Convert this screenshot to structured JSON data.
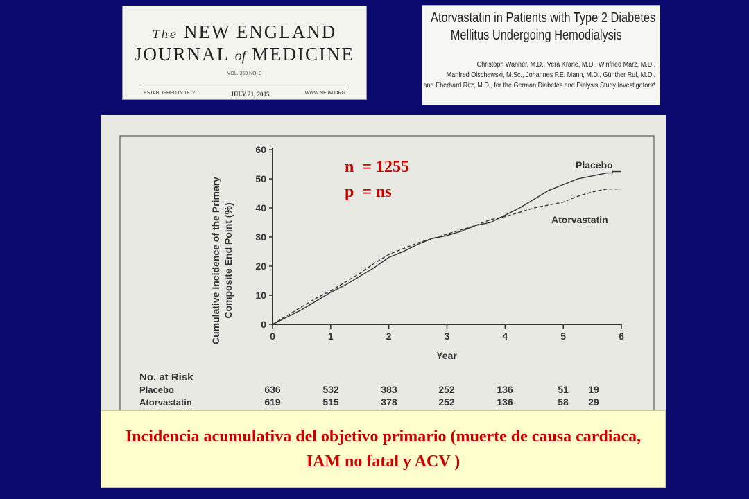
{
  "journal": {
    "the": "The",
    "line1": "NEW ENGLAND",
    "line2_a": "JOURNAL",
    "line2_of": "of",
    "line2_b": "MEDICINE",
    "volume": "VOL. 353   NO. 3",
    "established": "ESTABLISHED IN 1812",
    "date": "JULY 21, 2005",
    "website": "WWW.NEJM.ORG"
  },
  "article": {
    "title_line1": "Atorvastatin in Patients with Type 2 Diabetes",
    "title_line2": "Mellitus Undergoing Hemodialysis",
    "authors": [
      "Christoph Wanner, M.D., Vera Krane, M.D., Winfried März, M.D.,",
      "Manfred Olschewski, M.Sc., Johannes F.E. Mann, M.D., Günther Ruf, M.D.,",
      "and Eberhard Ritz, M.D., for the German Diabetes and Dialysis Study Investigators*"
    ]
  },
  "chart_data": {
    "type": "line",
    "title": "",
    "xlabel": "Year",
    "ylabel_line1": "Cumulative Incidence of the Primary",
    "ylabel_line2": "Composite End Point (%)",
    "xlim": [
      0,
      6
    ],
    "ylim": [
      0,
      60
    ],
    "x_ticks": [
      "0",
      "1",
      "2",
      "3",
      "4",
      "5",
      "6"
    ],
    "y_ticks": [
      "0",
      "10",
      "20",
      "30",
      "40",
      "50",
      "60"
    ],
    "annotations": [
      "n  = 1255",
      "p  = ns"
    ],
    "series": [
      {
        "name": "Placebo",
        "line_style": "solid",
        "points": [
          [
            0,
            0
          ],
          [
            0.25,
            2.5
          ],
          [
            0.5,
            5
          ],
          [
            0.75,
            8
          ],
          [
            1,
            11
          ],
          [
            1.25,
            13.5
          ],
          [
            1.5,
            16.5
          ],
          [
            1.75,
            19.5
          ],
          [
            2,
            23
          ],
          [
            2.25,
            25
          ],
          [
            2.5,
            27.5
          ],
          [
            2.75,
            29.5
          ],
          [
            3,
            30.5
          ],
          [
            3.25,
            32
          ],
          [
            3.5,
            34
          ],
          [
            3.75,
            35
          ],
          [
            4,
            37.5
          ],
          [
            4.25,
            40
          ],
          [
            4.5,
            43
          ],
          [
            4.75,
            46
          ],
          [
            5,
            48
          ],
          [
            5.25,
            50
          ],
          [
            5.5,
            51
          ],
          [
            5.75,
            52
          ],
          [
            5.85,
            52
          ],
          [
            5.85,
            52.5
          ],
          [
            6,
            52.5
          ]
        ]
      },
      {
        "name": "Atorvastatin",
        "line_style": "dashed",
        "points": [
          [
            0,
            0
          ],
          [
            0.25,
            3
          ],
          [
            0.5,
            6
          ],
          [
            0.75,
            9
          ],
          [
            1,
            11.5
          ],
          [
            1.25,
            14.5
          ],
          [
            1.5,
            17.5
          ],
          [
            1.75,
            21
          ],
          [
            2,
            24
          ],
          [
            2.25,
            26
          ],
          [
            2.5,
            28
          ],
          [
            2.75,
            29.5
          ],
          [
            3,
            31
          ],
          [
            3.25,
            32.5
          ],
          [
            3.5,
            34
          ],
          [
            3.75,
            36
          ],
          [
            4,
            37
          ],
          [
            4.25,
            38.5
          ],
          [
            4.5,
            40
          ],
          [
            4.75,
            41
          ],
          [
            5,
            42
          ],
          [
            5.25,
            44
          ],
          [
            5.5,
            45.5
          ],
          [
            5.75,
            46.5
          ],
          [
            6,
            46.5
          ]
        ]
      }
    ],
    "risk_table": {
      "header": "No. at Risk",
      "rows": [
        {
          "label": "Placebo",
          "values": [
            "636",
            "532",
            "383",
            "252",
            "136",
            "51",
            "19"
          ]
        },
        {
          "label": "Atorvastatin",
          "values": [
            "619",
            "515",
            "378",
            "252",
            "136",
            "58",
            "29"
          ]
        }
      ]
    }
  },
  "caption": "Incidencia acumulativa del objetivo primario (muerte de causa cardiaca, IAM no fatal y ACV )"
}
